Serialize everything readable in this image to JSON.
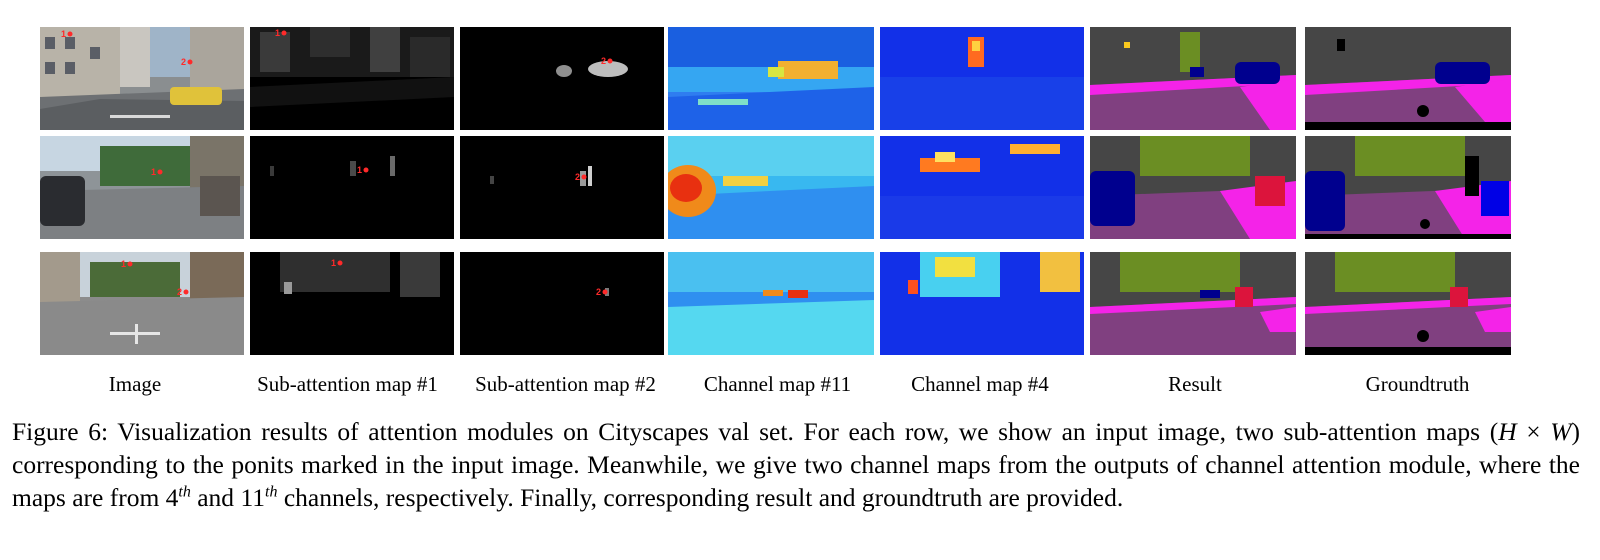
{
  "figure": {
    "column_labels": [
      "Image",
      "Sub-attention map #1",
      "Sub-attention map #2",
      "Channel map #11",
      "Channel map #4",
      "Result",
      "Groundtruth"
    ],
    "point_markers": [
      "1",
      "2"
    ],
    "caption": {
      "label": "Figure 6:",
      "part1": "Visualization results of attention modules on Cityscapes val set. For each row, we show an input image, two sub-attention maps",
      "math_H": "H",
      "math_times": "×",
      "math_W": "W",
      "part2": "corresponding to the ponits marked in the input image. Meanwhile, we give two channel maps from the outputs of channel attention module, where the maps are from",
      "ch4_base": "4",
      "ch4_sup": "th",
      "and": "and",
      "ch11_base": "11",
      "ch11_sup": "th",
      "part3": "channels, respectively. Finally, corresponding result and groundtruth are provided."
    }
  }
}
